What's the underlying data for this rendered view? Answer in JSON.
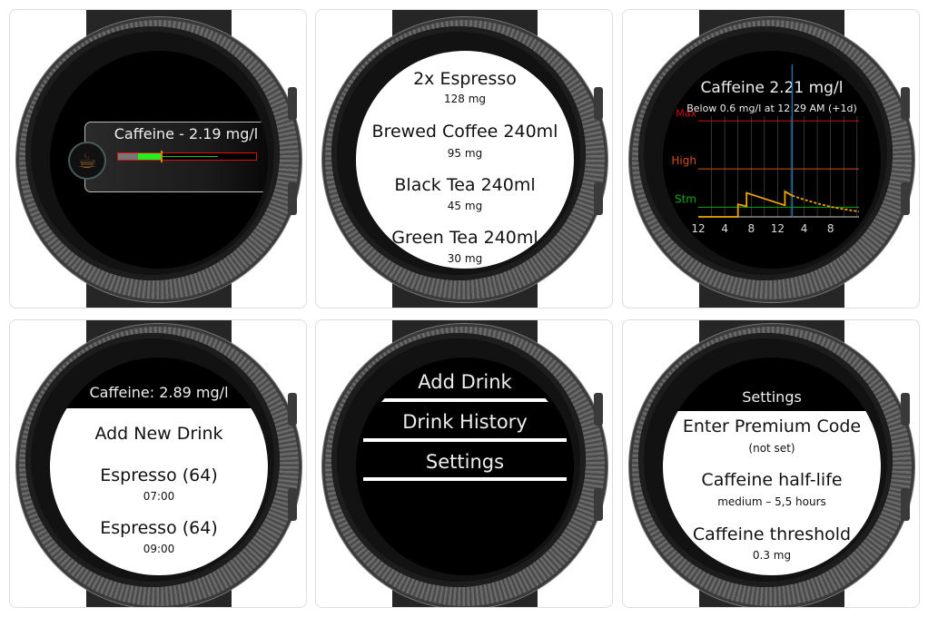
{
  "panel1": {
    "title": "Caffeine - 2.19 mg/l",
    "icon": "coffee-cup-icon",
    "level_fraction": 0.3,
    "colors": {
      "gray": "#777777",
      "green": "#22ee22",
      "marker": "#d08a00",
      "red": "#dd1111"
    }
  },
  "panel2": {
    "items": [
      {
        "name": "2x Espresso",
        "amount": "128 mg"
      },
      {
        "name": "Brewed Coffee 240ml",
        "amount": "95 mg"
      },
      {
        "name": "Black Tea 240ml",
        "amount": "45 mg"
      },
      {
        "name": "Green Tea 240ml",
        "amount": "30 mg"
      }
    ]
  },
  "panel3": {
    "title": "Caffeine 2.21 mg/l",
    "subtitle": "Below 0.6 mg/l at 12:29 AM (+1d)",
    "chart_data": {
      "type": "line",
      "x_tick_labels": [
        "12",
        "4",
        "8",
        "12",
        "4",
        "8"
      ],
      "x_ticks_hours": [
        0,
        4,
        8,
        12,
        16,
        20
      ],
      "xlim": [
        0,
        24.3
      ],
      "ylim": [
        0,
        10.5
      ],
      "levels": [
        {
          "label": "Max",
          "value": 10,
          "color": "#cc1111"
        },
        {
          "label": "High",
          "value": 5,
          "color": "#d0501a"
        },
        {
          "label": "Stm",
          "value": 1,
          "color": "#11aa11"
        }
      ],
      "now_hour": 14.2,
      "now_color": "#1e6fa8",
      "line_color": "#f2a400",
      "series": [
        {
          "style": "solid",
          "points": [
            [
              0,
              0
            ],
            [
              6,
              0
            ],
            [
              6,
              1.3
            ],
            [
              7.3,
              1.1
            ],
            [
              7.3,
              2.5
            ],
            [
              13.1,
              1.2
            ],
            [
              13.1,
              2.65
            ],
            [
              14.2,
              2.21
            ]
          ]
        },
        {
          "style": "dashed",
          "points": [
            [
              14.2,
              2.21
            ],
            [
              16,
              1.8
            ],
            [
              18,
              1.4
            ],
            [
              20,
              1.05
            ],
            [
              22,
              0.8
            ],
            [
              24.3,
              0.55
            ]
          ]
        }
      ]
    }
  },
  "panel4": {
    "header": "Caffeine: 2.89 mg/l",
    "add_label": "Add New Drink",
    "entries": [
      {
        "name": "Espresso (64)",
        "time": "07:00"
      },
      {
        "name": "Espresso (64)",
        "time": "09:00"
      }
    ]
  },
  "panel5": {
    "menu": [
      "Add Drink",
      "Drink History",
      "Settings"
    ]
  },
  "panel6": {
    "header": "Settings",
    "items": [
      {
        "label": "Enter Premium Code",
        "value": "(not set)"
      },
      {
        "label": "Caffeine half-life",
        "value": "medium – 5,5 hours"
      },
      {
        "label": "Caffeine threshold",
        "value": "0.3 mg"
      }
    ]
  }
}
